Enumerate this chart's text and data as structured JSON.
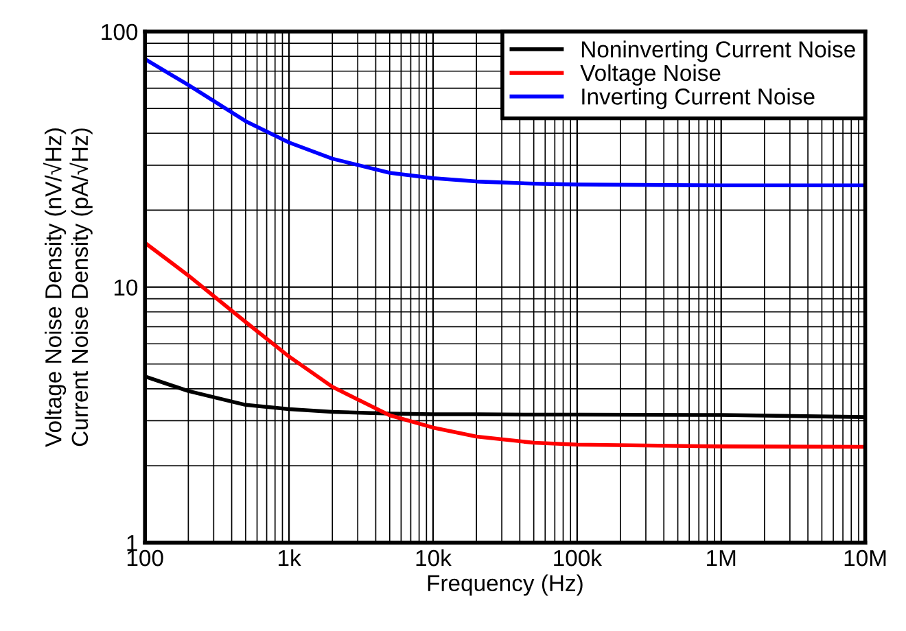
{
  "chart_data": {
    "type": "line",
    "xlabel": "Frequency (Hz)",
    "ylabel": "Voltage Noise Density (nV/√Hz)\nCurrent Noise Density (pA/√Hz)",
    "x": [
      100,
      200,
      500,
      1000,
      2000,
      5000,
      10000,
      20000,
      50000,
      100000,
      1000000,
      10000000
    ],
    "series": [
      {
        "name": "Noninverting Current Noise",
        "color": "#000000",
        "values": [
          4.47,
          3.92,
          3.46,
          3.33,
          3.25,
          3.2,
          3.18,
          3.18,
          3.17,
          3.17,
          3.16,
          3.1
        ]
      },
      {
        "name": "Voltage Noise",
        "color": "#ff0000",
        "values": [
          14.9,
          11.1,
          7.3,
          5.35,
          4.07,
          3.15,
          2.82,
          2.6,
          2.46,
          2.42,
          2.38,
          2.37
        ]
      },
      {
        "name": "Inverting Current Noise",
        "color": "#0000ff",
        "values": [
          78,
          61.8,
          44.6,
          36.8,
          31.8,
          28,
          26.7,
          25.9,
          25.4,
          25.2,
          25,
          25
        ]
      }
    ],
    "log": "xy",
    "xlim": [
      100,
      10000000
    ],
    "ylim": [
      1,
      100
    ],
    "xticks": [
      100,
      {
        "value": 1000,
        "label": "1k"
      },
      {
        "value": 10000,
        "label": "10k"
      },
      {
        "value": 100000,
        "label": "100k"
      },
      {
        "value": 1000000,
        "label": "1M"
      },
      {
        "value": 10000000,
        "label": "10M"
      }
    ],
    "yticks": [
      1,
      10,
      100
    ],
    "grid": true,
    "legend": "top right",
    "marker": "none",
    "line_style": "solid"
  }
}
